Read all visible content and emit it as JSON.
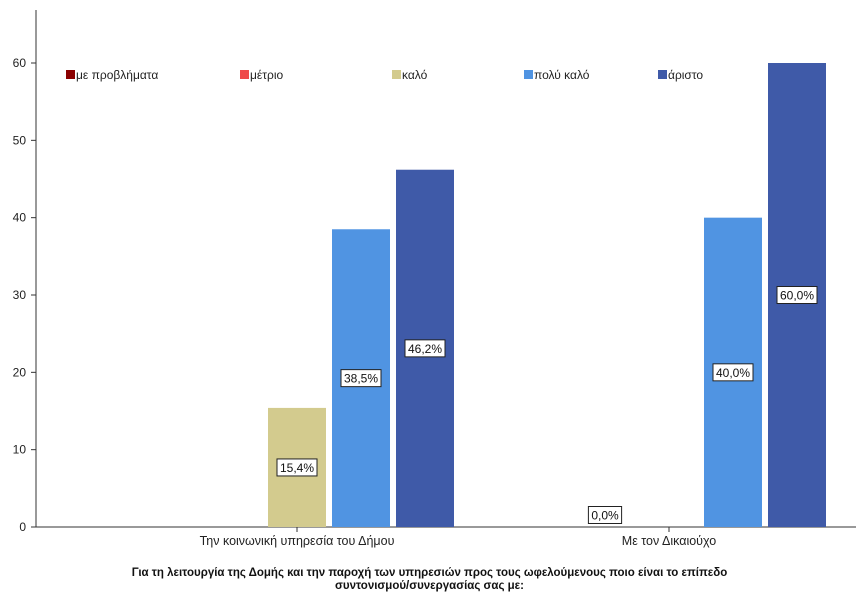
{
  "chart_data": {
    "type": "bar",
    "title": "",
    "xlabel_line1": "Για τη λειτουργία της Δομής και την παροχή των υπηρεσιών προς τους ωφελούμενους ποιο είναι το επίπεδο",
    "xlabel_line2": "συντονισμού/συνεργασίας σας με:",
    "ylabel": "",
    "ylim": [
      0,
      65
    ],
    "yticks": [
      0,
      10,
      20,
      30,
      40,
      50,
      60
    ],
    "categories": [
      "Την κοινωνική υπηρεσία του Δήμου",
      "Με τον Δικαιούχο"
    ],
    "series": [
      {
        "name": "με προβλήματα",
        "color": "#8b0000",
        "values": [
          null,
          null
        ],
        "labels": [
          null,
          null
        ]
      },
      {
        "name": "μέτριο",
        "color": "#ef4a4a",
        "values": [
          null,
          0
        ],
        "labels": [
          null,
          "0,0%"
        ]
      },
      {
        "name": "καλό",
        "color": "#d3cb8e",
        "values": [
          15.4,
          null
        ],
        "labels": [
          "15,4%",
          null
        ]
      },
      {
        "name": "πολύ καλό",
        "color": "#5094e2",
        "values": [
          38.5,
          40.0
        ],
        "labels": [
          "38,5%",
          "40,0%"
        ]
      },
      {
        "name": "άριστο",
        "color": "#3f5aa8",
        "values": [
          46.2,
          60.0
        ],
        "labels": [
          "46,2%",
          "60,0%"
        ]
      }
    ],
    "legend_position": "top",
    "grid": false
  }
}
